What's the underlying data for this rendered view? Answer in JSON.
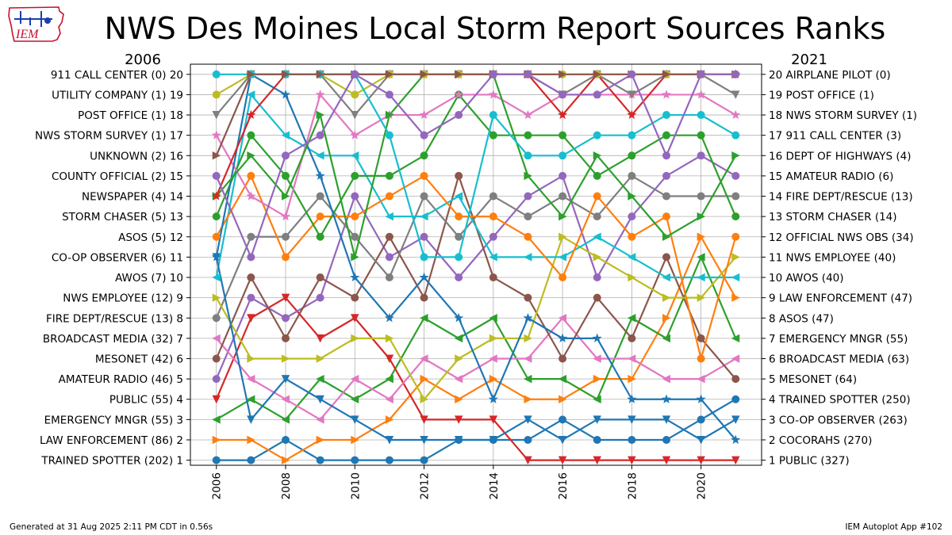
{
  "header": {
    "title": "NWS Des Moines Local Storm Report Sources Ranks",
    "logo_text": "IEM"
  },
  "footer": {
    "left": "Generated at 31 Aug 2025 2:11 PM CDT in 0.56s",
    "right": "IEM Autoplot App #102"
  },
  "chart_data": {
    "type": "line",
    "title": "NWS Des Moines Local Storm Report Sources Ranks",
    "left_year_label": "2006",
    "right_year_label": "2021",
    "x": [
      2006,
      2007,
      2008,
      2009,
      2010,
      2011,
      2012,
      2013,
      2014,
      2015,
      2016,
      2017,
      2018,
      2019,
      2020,
      2021
    ],
    "x_ticks": [
      "2006",
      "2008",
      "2010",
      "2012",
      "2014",
      "2016",
      "2018",
      "2020"
    ],
    "xlim": [
      2005.25,
      2021.75
    ],
    "ylim": [
      0.75,
      20.5
    ],
    "grid": true,
    "left_tick_labels": [
      "TRAINED SPOTTER (202) 1",
      "LAW ENFORCEMENT (86) 2",
      "EMERGENCY MNGR (55) 3",
      "PUBLIC (55) 4",
      "AMATEUR RADIO (46) 5",
      "MESONET (42) 6",
      "BROADCAST MEDIA (32) 7",
      "FIRE DEPT/RESCUE (13) 8",
      "NWS EMPLOYEE (12) 9",
      "AWOS (7) 10",
      "CO-OP OBSERVER (6) 11",
      "ASOS (5) 12",
      "STORM CHASER (5) 13",
      "NEWSPAPER (4) 14",
      "COUNTY OFFICIAL (2) 15",
      "UNKNOWN (2) 16",
      "NWS STORM SURVEY (1) 17",
      "POST OFFICE (1) 18",
      "UTILITY COMPANY (1) 19",
      "911 CALL CENTER (0) 20"
    ],
    "right_tick_labels": [
      "1 PUBLIC (327)",
      "2 COCORAHS (270)",
      "3 CO-OP OBSERVER (263)",
      "4 TRAINED SPOTTER (250)",
      "5 MESONET (64)",
      "6 BROADCAST MEDIA (63)",
      "7 EMERGENCY MNGR (55)",
      "8 ASOS (47)",
      "9 LAW ENFORCEMENT (47)",
      "10 AWOS (40)",
      "11 NWS EMPLOYEE (40)",
      "12 OFFICIAL NWS OBS (34)",
      "13 STORM CHASER (14)",
      "14 FIRE DEPT/RESCUE (13)",
      "15 AMATEUR RADIO (6)",
      "16 DEPT OF HIGHWAYS (4)",
      "17 911 CALL CENTER (3)",
      "18 NWS STORM SURVEY (1)",
      "19 POST OFFICE (1)",
      "20 AIRPLANE PILOT (0)"
    ],
    "series": [
      {
        "color": "#1f77b4",
        "marker": "circle",
        "values": [
          1,
          1,
          2,
          1,
          1,
          1,
          1,
          2,
          2,
          2,
          3,
          2,
          2,
          2,
          3,
          4
        ]
      },
      {
        "color": "#ff7f0e",
        "marker": "tri_right",
        "values": [
          2,
          2,
          1,
          2,
          2,
          3,
          5,
          4,
          5,
          4,
          4,
          5,
          5,
          8,
          12,
          9
        ]
      },
      {
        "color": "#2ca02c",
        "marker": "tri_left",
        "values": [
          3,
          4,
          3,
          5,
          4,
          5,
          8,
          7,
          8,
          5,
          5,
          4,
          8,
          7,
          11,
          7
        ]
      },
      {
        "color": "#d62728",
        "marker": "tri_down",
        "values": [
          4,
          8,
          9,
          7,
          8,
          6,
          3,
          3,
          3,
          1,
          1,
          1,
          1,
          1,
          1,
          1
        ]
      },
      {
        "color": "#9467bd",
        "marker": "circle",
        "values": [
          5,
          9,
          8,
          9,
          14,
          11,
          12,
          10,
          12,
          14,
          15,
          10,
          13,
          15,
          16,
          15
        ]
      },
      {
        "color": "#e377c2",
        "marker": "tri_left",
        "values": [
          7,
          5,
          4,
          3,
          5,
          4,
          6,
          5,
          6,
          6,
          8,
          6,
          6,
          5,
          5,
          6
        ]
      },
      {
        "color": "#8c564b",
        "marker": "circle",
        "values": [
          6,
          10,
          7,
          10,
          9,
          12,
          9,
          15,
          10,
          9,
          6,
          9,
          7,
          11,
          7,
          5
        ]
      },
      {
        "color": "#7f7f7f",
        "marker": "circle",
        "values": [
          8,
          12,
          12,
          14,
          12,
          10,
          14,
          12,
          14,
          13,
          14,
          13,
          15,
          14,
          14,
          14
        ]
      },
      {
        "color": "#bcbd22",
        "marker": "tri_right",
        "values": [
          9,
          6,
          6,
          6,
          7,
          7,
          4,
          6,
          7,
          7,
          12,
          11,
          10,
          9,
          9,
          11
        ]
      },
      {
        "color": "#17becf",
        "marker": "tri_left",
        "values": [
          10,
          19,
          17,
          16,
          16,
          13,
          13,
          14,
          11,
          11,
          11,
          12,
          11,
          10,
          10,
          10
        ]
      },
      {
        "color": "#1f77b4",
        "marker": "tri_down",
        "values": [
          11,
          3,
          5,
          4,
          3,
          2,
          2,
          2,
          2,
          3,
          2,
          3,
          3,
          3,
          2,
          3
        ]
      },
      {
        "color": "#ff7f0e",
        "marker": "circle",
        "values": [
          12,
          15,
          11,
          13,
          13,
          14,
          15,
          13,
          13,
          12,
          10,
          14,
          12,
          13,
          6,
          12
        ]
      },
      {
        "color": "#2ca02c",
        "marker": "circle",
        "values": [
          13,
          17,
          15,
          12,
          15,
          15,
          16,
          19,
          17,
          17,
          17,
          15,
          16,
          17,
          17,
          13
        ]
      },
      {
        "color": "#e377c2",
        "marker": "star",
        "values": [
          17,
          14,
          13,
          19,
          17,
          18,
          18,
          19,
          19,
          18,
          19,
          19,
          19,
          19,
          19,
          18
        ]
      },
      {
        "color": "#1f77b4",
        "marker": "star",
        "values": [
          11,
          20,
          19,
          15,
          10,
          8,
          10,
          8,
          4,
          8,
          7,
          7,
          4,
          4,
          4,
          2
        ]
      },
      {
        "color": "#2ca02c",
        "marker": "tri_right",
        "values": [
          14,
          16,
          14,
          18,
          11,
          18,
          20,
          20,
          20,
          15,
          13,
          16,
          14,
          12,
          13,
          16
        ]
      },
      {
        "color": "#d62728",
        "marker": "star",
        "values": [
          14,
          18,
          20,
          20,
          20,
          20,
          20,
          20,
          20,
          20,
          18,
          20,
          18,
          20,
          20,
          20
        ]
      },
      {
        "color": "#7f7f7f",
        "marker": "tri_down",
        "values": [
          18,
          20,
          20,
          20,
          18,
          20,
          20,
          20,
          20,
          20,
          19,
          20,
          19,
          20,
          20,
          19
        ]
      },
      {
        "color": "#bcbd22",
        "marker": "circle",
        "values": [
          19,
          20,
          20,
          20,
          19,
          20,
          20,
          20,
          20,
          20,
          20,
          20,
          20,
          20,
          20,
          20
        ]
      },
      {
        "color": "#17becf",
        "marker": "circle",
        "values": [
          20,
          20,
          20,
          20,
          20,
          17,
          11,
          11,
          18,
          16,
          16,
          17,
          17,
          18,
          18,
          17
        ]
      },
      {
        "color": "#8c564b",
        "marker": "tri_right",
        "values": [
          16,
          20,
          20,
          20,
          20,
          20,
          20,
          20,
          20,
          20,
          20,
          20,
          20,
          20,
          20,
          20
        ]
      },
      {
        "color": "#9467bd",
        "marker": "circle",
        "values": [
          15,
          11,
          16,
          17,
          20,
          19,
          17,
          18,
          20,
          20,
          19,
          19,
          20,
          16,
          20,
          20
        ]
      }
    ]
  }
}
